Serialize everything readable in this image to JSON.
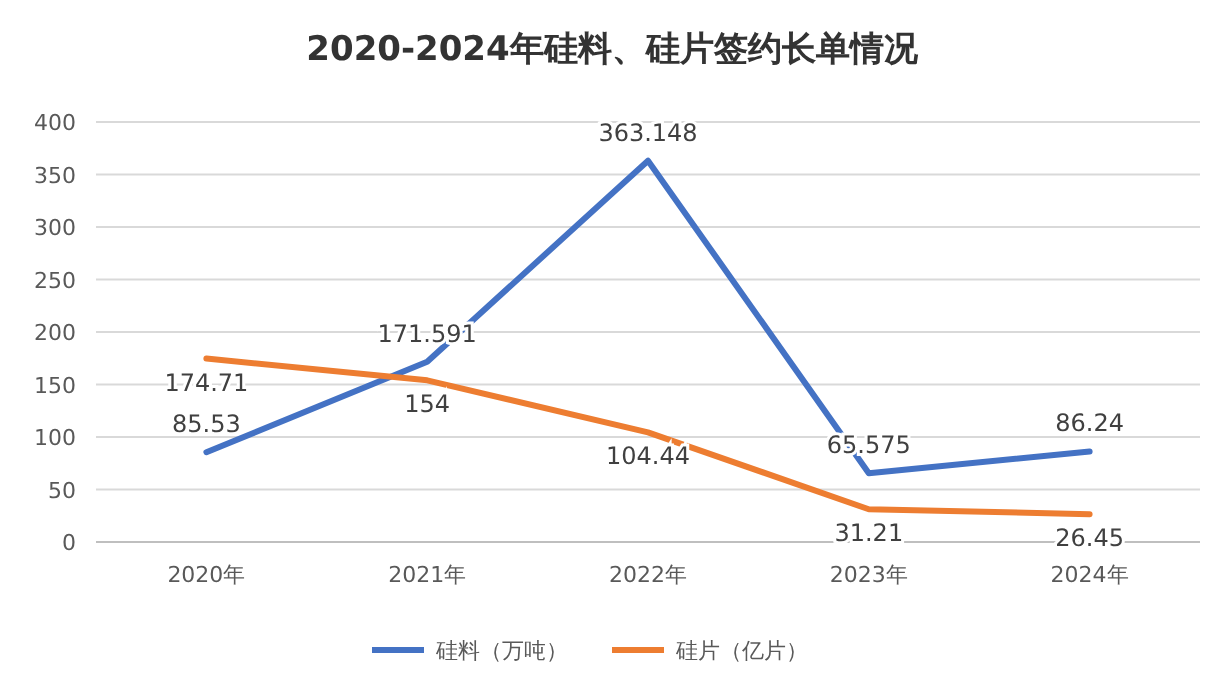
{
  "chart_data": {
    "type": "line",
    "title": "2020-2024年硅料、硅片签约长单情况",
    "categories": [
      "2020年",
      "2021年",
      "2022年",
      "2023年",
      "2024年"
    ],
    "series": [
      {
        "name": "硅料（万吨）",
        "color": "#4472c4",
        "values": [
          85.53,
          171.591,
          363.148,
          65.575,
          86.24
        ]
      },
      {
        "name": "硅片（亿片）",
        "color": "#ed7d31",
        "values": [
          174.71,
          154,
          104.44,
          31.21,
          26.45
        ]
      }
    ],
    "ylim": [
      0,
      400
    ],
    "yticks": [
      0,
      50,
      100,
      150,
      200,
      250,
      300,
      350,
      400
    ],
    "grid": "y",
    "legend": "bottom",
    "data_labels": true,
    "marker": "none",
    "line_style": "solid"
  }
}
